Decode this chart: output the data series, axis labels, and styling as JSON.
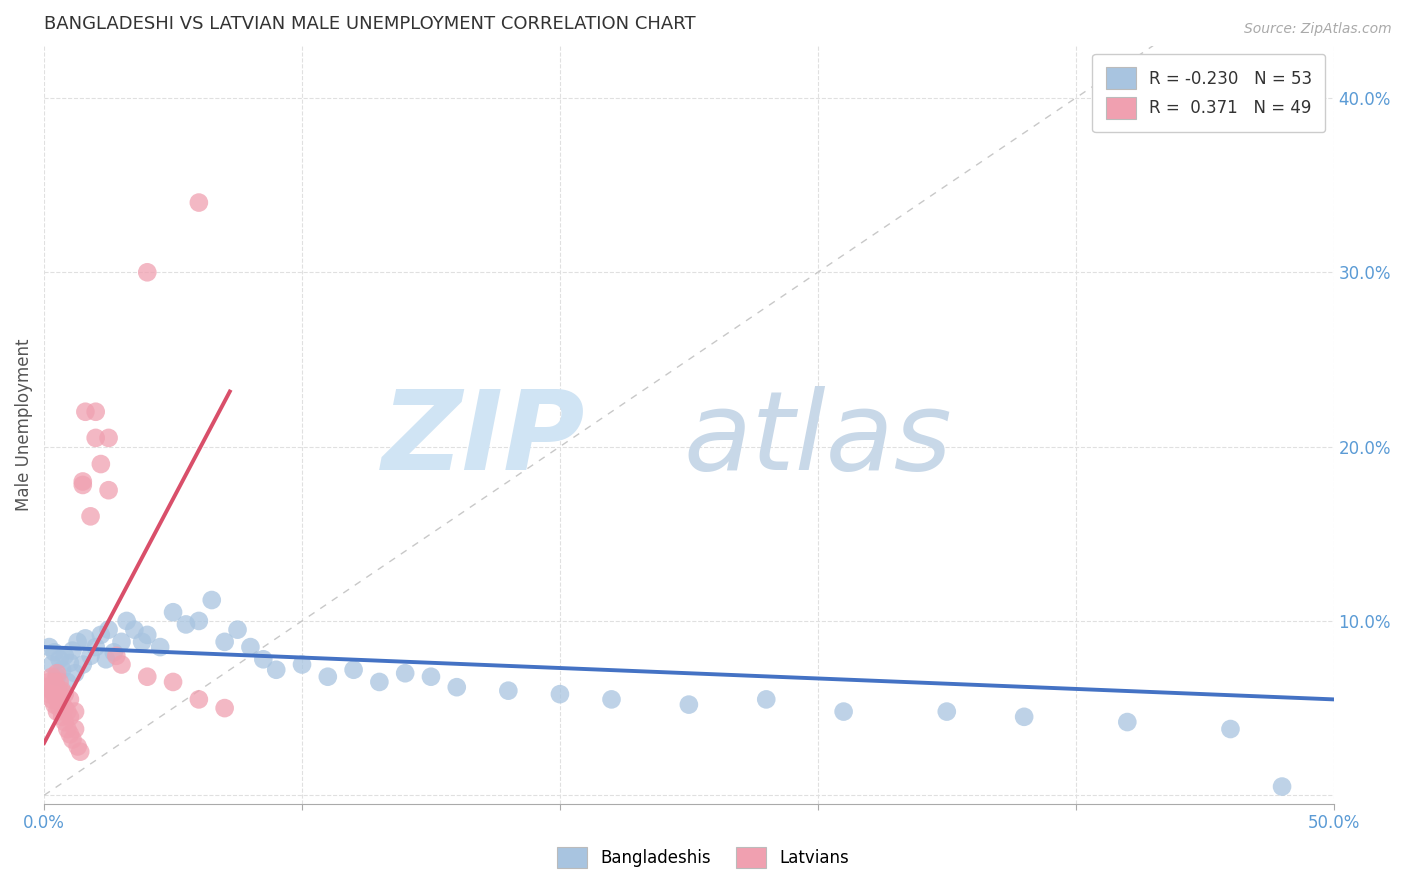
{
  "title": "BANGLADESHI VS LATVIAN MALE UNEMPLOYMENT CORRELATION CHART",
  "source": "Source: ZipAtlas.com",
  "ylabel": "Male Unemployment",
  "xlim": [
    0.0,
    0.5
  ],
  "ylim": [
    -0.005,
    0.43
  ],
  "blue_color": "#a8c4e0",
  "pink_color": "#f0a0b0",
  "line_blue": "#4472c4",
  "line_pink": "#d94f6a",
  "diag_color": "#c8c8c8",
  "background_color": "#ffffff",
  "blue_x": [
    0.002,
    0.003,
    0.004,
    0.005,
    0.006,
    0.007,
    0.008,
    0.009,
    0.01,
    0.011,
    0.012,
    0.013,
    0.015,
    0.016,
    0.018,
    0.02,
    0.022,
    0.024,
    0.025,
    0.027,
    0.03,
    0.032,
    0.035,
    0.038,
    0.04,
    0.045,
    0.05,
    0.055,
    0.06,
    0.065,
    0.07,
    0.075,
    0.08,
    0.085,
    0.09,
    0.1,
    0.11,
    0.12,
    0.13,
    0.14,
    0.15,
    0.16,
    0.18,
    0.2,
    0.22,
    0.25,
    0.28,
    0.31,
    0.35,
    0.38,
    0.42,
    0.46,
    0.48
  ],
  "blue_y": [
    0.085,
    0.075,
    0.082,
    0.068,
    0.078,
    0.072,
    0.08,
    0.065,
    0.076,
    0.083,
    0.07,
    0.088,
    0.075,
    0.09,
    0.08,
    0.085,
    0.092,
    0.078,
    0.095,
    0.082,
    0.088,
    0.1,
    0.095,
    0.088,
    0.092,
    0.085,
    0.105,
    0.098,
    0.1,
    0.112,
    0.088,
    0.095,
    0.085,
    0.078,
    0.072,
    0.075,
    0.068,
    0.072,
    0.065,
    0.07,
    0.068,
    0.062,
    0.06,
    0.058,
    0.055,
    0.052,
    0.055,
    0.048,
    0.048,
    0.045,
    0.042,
    0.038,
    0.005
  ],
  "pink_x": [
    0.001,
    0.002,
    0.002,
    0.003,
    0.003,
    0.003,
    0.004,
    0.004,
    0.004,
    0.005,
    0.005,
    0.005,
    0.005,
    0.006,
    0.006,
    0.006,
    0.007,
    0.007,
    0.007,
    0.008,
    0.008,
    0.008,
    0.009,
    0.009,
    0.01,
    0.01,
    0.01,
    0.011,
    0.012,
    0.012,
    0.013,
    0.014,
    0.015,
    0.016,
    0.018,
    0.02,
    0.022,
    0.025,
    0.028,
    0.03,
    0.04,
    0.05,
    0.06,
    0.07,
    0.04,
    0.06,
    0.02,
    0.025,
    0.015
  ],
  "pink_y": [
    0.062,
    0.058,
    0.065,
    0.055,
    0.06,
    0.068,
    0.052,
    0.058,
    0.065,
    0.048,
    0.055,
    0.062,
    0.07,
    0.05,
    0.058,
    0.065,
    0.045,
    0.052,
    0.06,
    0.042,
    0.05,
    0.058,
    0.038,
    0.048,
    0.035,
    0.045,
    0.055,
    0.032,
    0.038,
    0.048,
    0.028,
    0.025,
    0.178,
    0.22,
    0.16,
    0.205,
    0.19,
    0.175,
    0.08,
    0.075,
    0.068,
    0.065,
    0.055,
    0.05,
    0.3,
    0.34,
    0.22,
    0.205,
    0.18
  ]
}
